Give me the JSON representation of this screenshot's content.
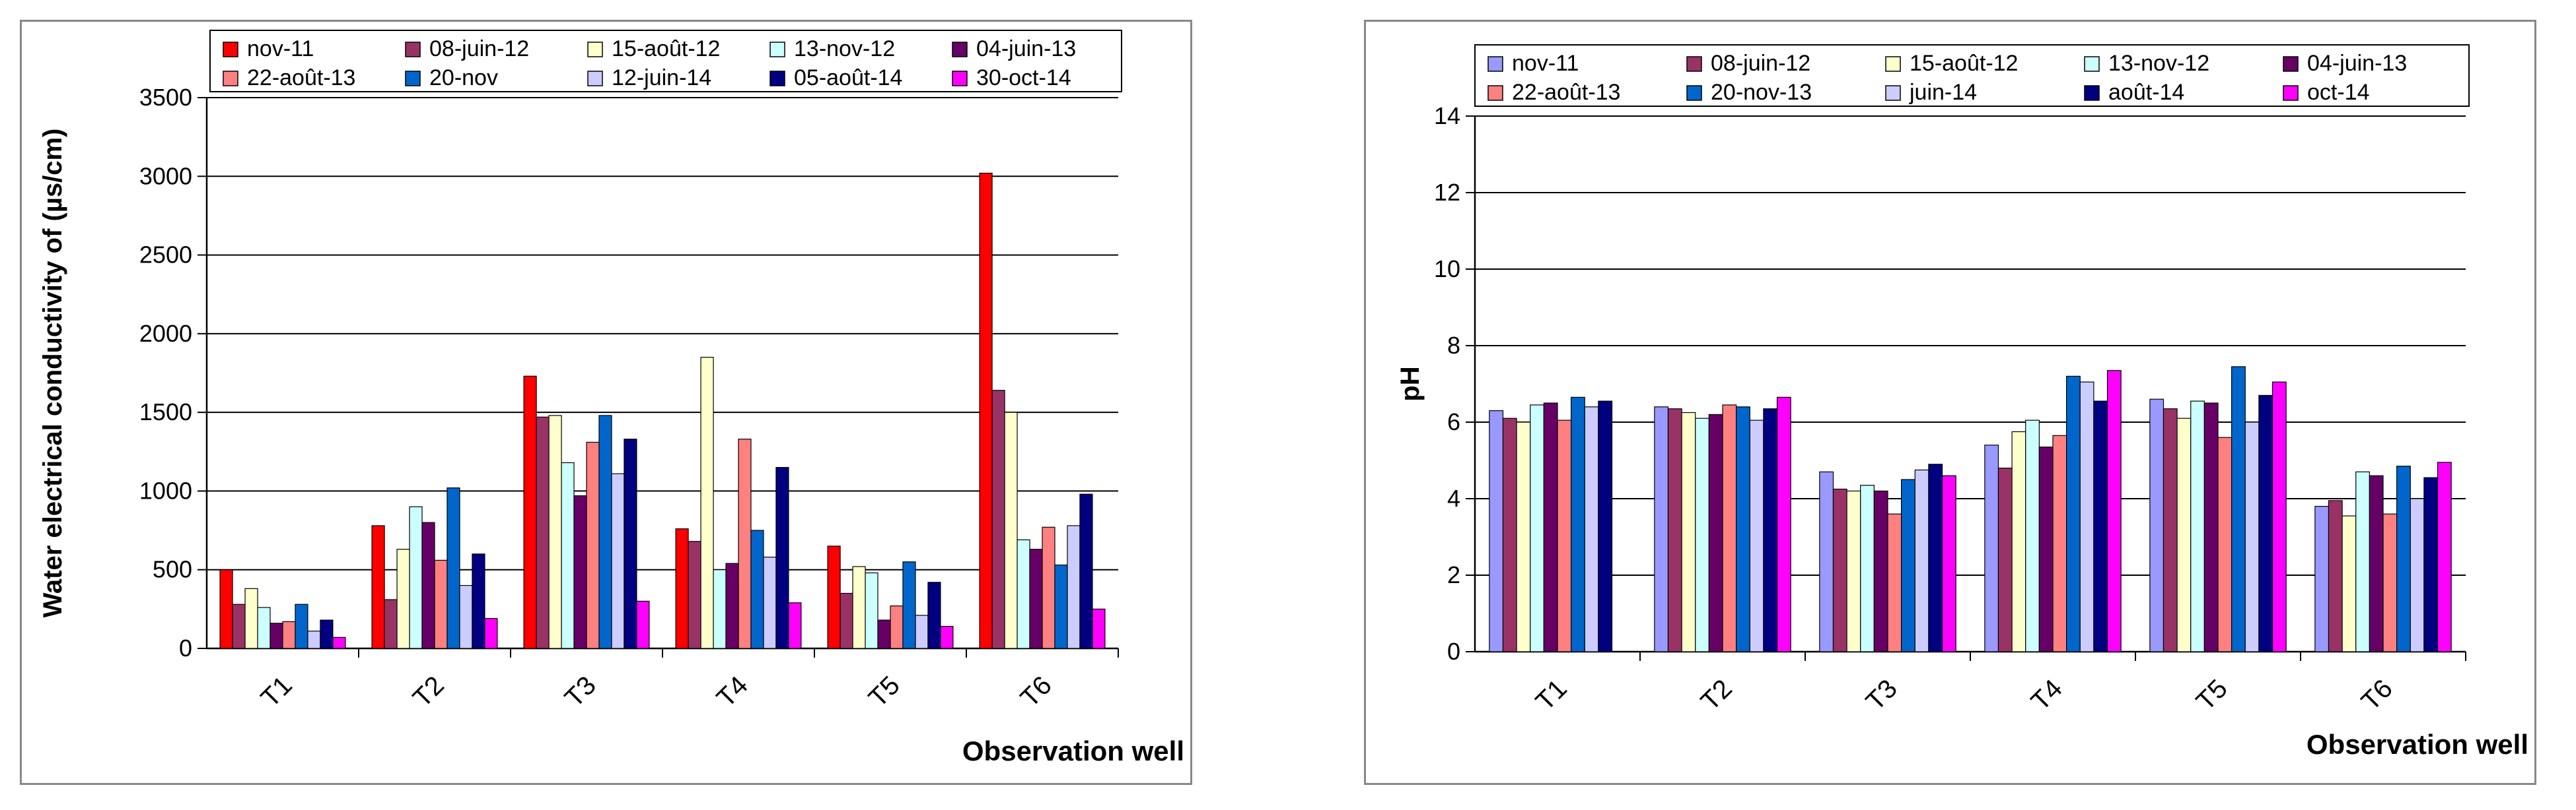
{
  "chart_data": [
    {
      "type": "bar",
      "title": "",
      "xlabel": "Observation well",
      "ylabel": "Water electrical conductivity of  (µs/cm)",
      "ylim": [
        0,
        3500
      ],
      "yticks": [
        0,
        500,
        1000,
        1500,
        2000,
        2500,
        3000,
        3500
      ],
      "ytick_labels": [
        "0",
        "500",
        "1000",
        "1500",
        "2000",
        "2500",
        "3000",
        "3500"
      ],
      "grid": true,
      "legend_position": "top",
      "categories": [
        "T1",
        "T2",
        "T3",
        "T4",
        "T5",
        "T6"
      ],
      "series": [
        {
          "name": "nov-11",
          "color": "#FF0000",
          "values": [
            500,
            780,
            1730,
            760,
            650,
            3020
          ]
        },
        {
          "name": "08-juin-12",
          "color": "#993366",
          "values": [
            280,
            310,
            1470,
            680,
            350,
            1640
          ]
        },
        {
          "name": "15-août-12",
          "color": "#FFFFCC",
          "values": [
            380,
            630,
            1480,
            1850,
            520,
            1500
          ]
        },
        {
          "name": "13-nov-12",
          "color": "#CCFFFF",
          "values": [
            260,
            900,
            1180,
            500,
            480,
            690
          ]
        },
        {
          "name": "04-juin-13",
          "color": "#660066",
          "values": [
            160,
            800,
            970,
            540,
            180,
            630
          ]
        },
        {
          "name": "22-août-13",
          "color": "#FF8080",
          "values": [
            170,
            560,
            1310,
            1330,
            270,
            770
          ]
        },
        {
          "name": "20-nov",
          "color": "#0066CC",
          "values": [
            280,
            1020,
            1480,
            750,
            550,
            530
          ]
        },
        {
          "name": "12-juin-14",
          "color": "#CCCCFF",
          "values": [
            110,
            400,
            1110,
            580,
            210,
            780
          ]
        },
        {
          "name": "05-août-14",
          "color": "#000080",
          "values": [
            180,
            600,
            1330,
            1150,
            420,
            980
          ]
        },
        {
          "name": "30-oct-14",
          "color": "#FF00FF",
          "values": [
            70,
            190,
            300,
            290,
            140,
            250
          ]
        }
      ]
    },
    {
      "type": "bar",
      "title": "",
      "xlabel": "Observation well",
      "ylabel": "pH",
      "ylim": [
        0,
        14
      ],
      "yticks": [
        0,
        2,
        4,
        6,
        8,
        10,
        12,
        14
      ],
      "ytick_labels": [
        "0",
        "2",
        "4",
        "6",
        "8",
        "10",
        "12",
        "14"
      ],
      "grid": true,
      "legend_position": "top",
      "categories": [
        "T1",
        "T2",
        "T3",
        "T4",
        "T5",
        "T6"
      ],
      "series": [
        {
          "name": "nov-11",
          "color": "#9999FF",
          "values": [
            6.3,
            6.4,
            4.7,
            5.4,
            6.6,
            3.8
          ]
        },
        {
          "name": "08-juin-12",
          "color": "#993366",
          "values": [
            6.1,
            6.35,
            4.25,
            4.8,
            6.35,
            3.95
          ]
        },
        {
          "name": "15-août-12",
          "color": "#FFFFCC",
          "values": [
            6.0,
            6.25,
            4.2,
            5.75,
            6.1,
            3.55
          ]
        },
        {
          "name": "13-nov-12",
          "color": "#CCFFFF",
          "values": [
            6.45,
            6.1,
            4.35,
            6.05,
            6.55,
            4.7
          ]
        },
        {
          "name": "04-juin-13",
          "color": "#660066",
          "values": [
            6.5,
            6.2,
            4.2,
            5.35,
            6.5,
            4.6
          ]
        },
        {
          "name": "22-août-13",
          "color": "#FF8080",
          "values": [
            6.05,
            6.45,
            3.6,
            5.65,
            5.6,
            3.6
          ]
        },
        {
          "name": "20-nov-13",
          "color": "#0066CC",
          "values": [
            6.65,
            6.4,
            4.5,
            7.2,
            7.45,
            4.85
          ]
        },
        {
          "name": "juin-14",
          "color": "#CCCCFF",
          "values": [
            6.4,
            6.05,
            4.75,
            7.05,
            6.0,
            4.0
          ]
        },
        {
          "name": "août-14",
          "color": "#000080",
          "values": [
            6.55,
            6.35,
            4.9,
            6.55,
            6.7,
            4.55
          ]
        },
        {
          "name": "oct-14",
          "color": "#FF00FF",
          "values": [
            null,
            6.65,
            4.6,
            7.35,
            7.05,
            4.95
          ]
        }
      ]
    }
  ]
}
